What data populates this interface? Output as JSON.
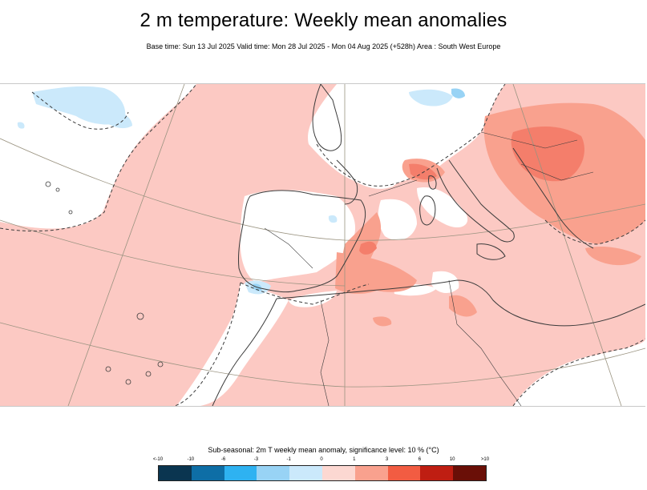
{
  "header": {
    "title": "2 m temperature: Weekly mean anomalies",
    "subtitle": "Base time: Sun 13 Jul 2025 Valid time: Mon 28 Jul 2025 - Mon 04 Aug 2025 (+528h) Area : South West Europe"
  },
  "map": {
    "region": "South West Europe",
    "colors": {
      "ocean_anomaly": "#fcc9c3",
      "warm": "#f9a18e",
      "warmer": "#f47e6b",
      "cool": "#cbe9fb",
      "cooler": "#98d3f5",
      "neutral": "#ffffff",
      "border": "#3b3b3b",
      "graticule": "#9a9380"
    },
    "graticule_labels": [
      "",
      ""
    ]
  },
  "legend": {
    "title": "Sub-seasonal: 2m T weekly mean anomaly, significance level: 10 % (°C)",
    "ticks": [
      "<-10",
      "-10",
      "-6",
      "-3",
      "-1",
      "0",
      "1",
      "3",
      "6",
      "10",
      ">10"
    ],
    "colors": [
      "#0a3550",
      "#0e6ea6",
      "#2eb2f1",
      "#98d3f5",
      "#cbe9fb",
      "#fcd8d2",
      "#f9a18e",
      "#f25c42",
      "#bf1e12",
      "#6a0f07"
    ]
  }
}
